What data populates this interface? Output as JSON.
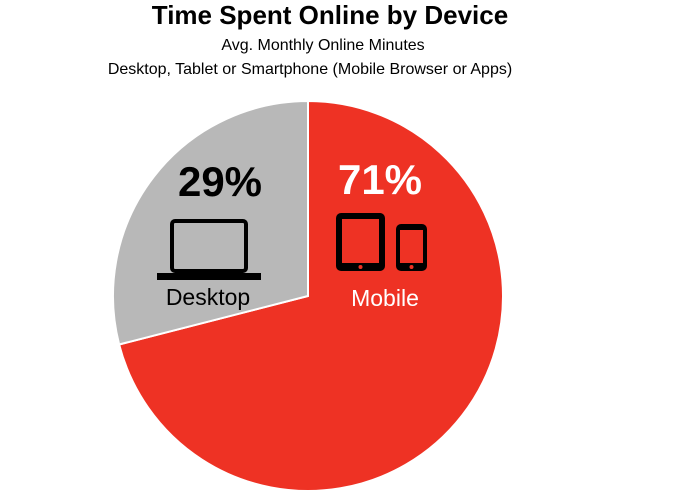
{
  "chart_data": {
    "type": "pie",
    "title": "Time Spent Online by Device",
    "subtitle": [
      "Avg. Monthly Online Minutes",
      "Desktop, Tablet or Smartphone (Mobile Browser or Apps)"
    ],
    "categories": [
      "Mobile",
      "Desktop"
    ],
    "values": [
      71,
      29
    ],
    "value_labels": [
      "71%",
      "29%"
    ],
    "colors": [
      "#ee3224",
      "#b8b8b8"
    ],
    "label_colors": [
      "#ffffff",
      "#000000"
    ]
  }
}
